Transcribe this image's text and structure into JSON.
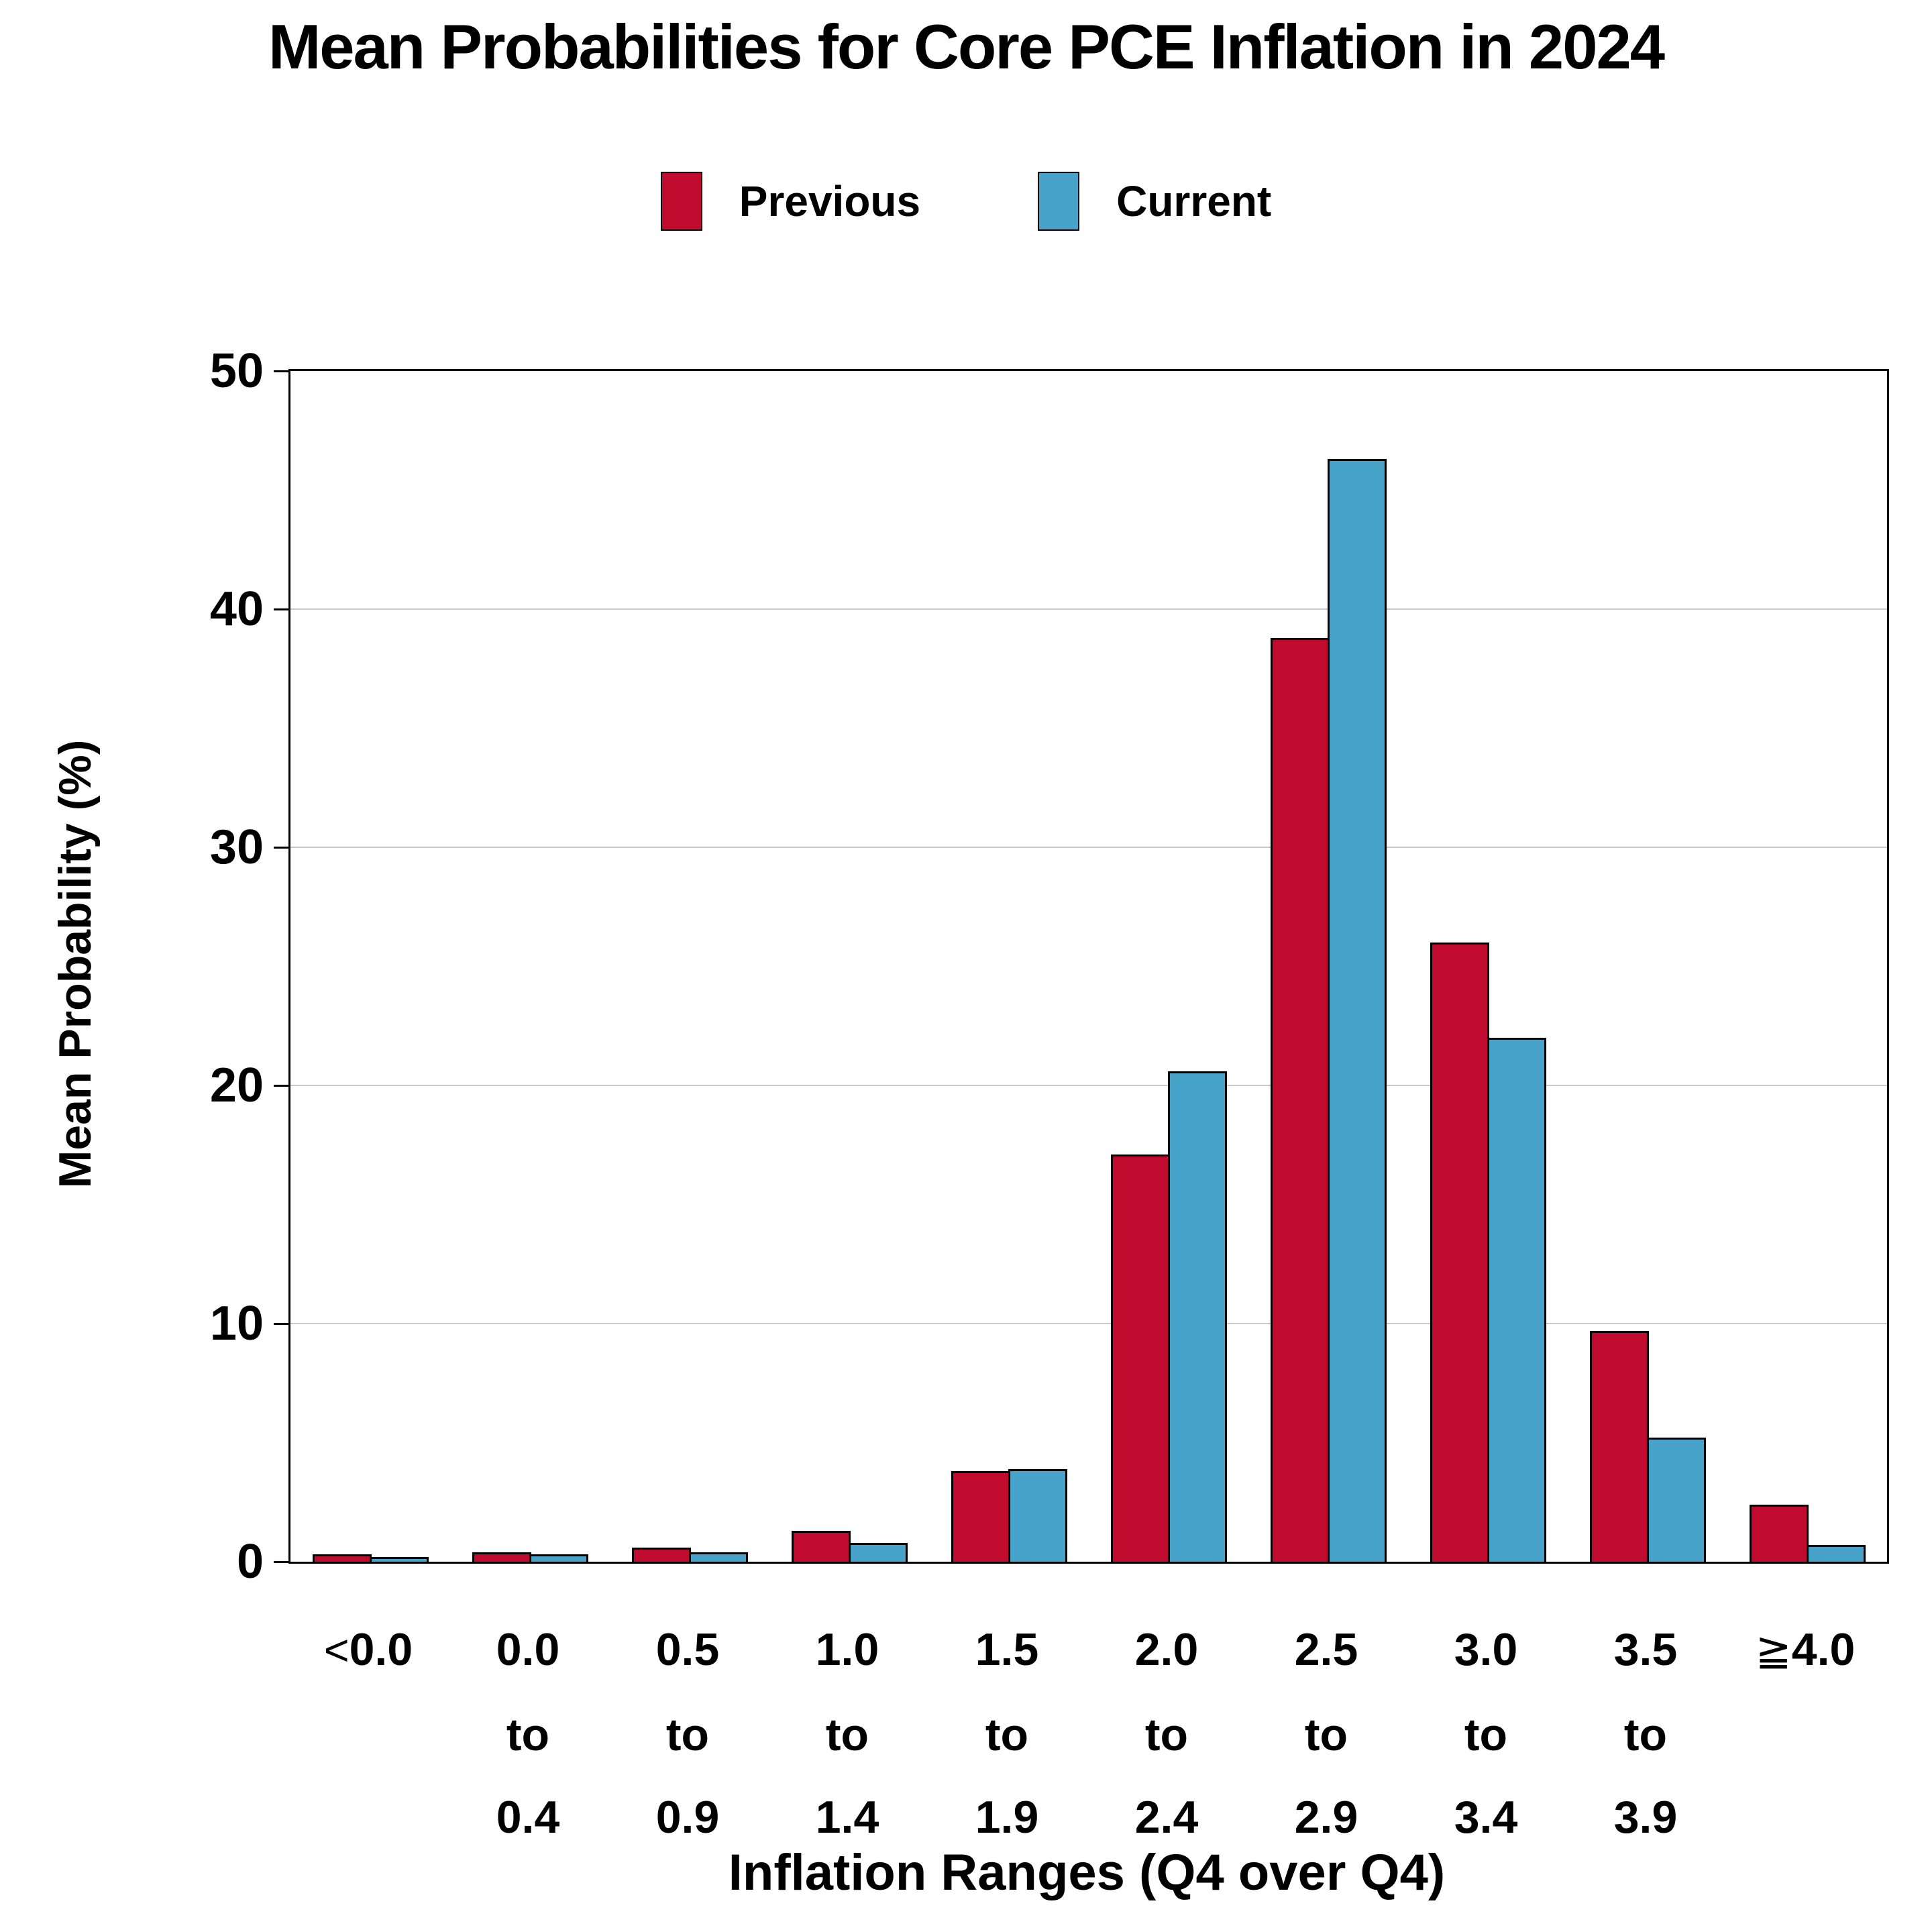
{
  "title": "Mean Probabilities for Core PCE Inflation in 2024",
  "legend": {
    "items": [
      {
        "label": "Previous",
        "color": "#C00A2E"
      },
      {
        "label": "Current",
        "color": "#47A3C9"
      }
    ]
  },
  "y_axis": {
    "title": "Mean Probability (%)",
    "ticks": [
      0,
      10,
      20,
      30,
      40,
      50
    ]
  },
  "x_axis": {
    "title": "Inflation Ranges (Q4 over Q4)",
    "labels": [
      [
        "<0.0"
      ],
      [
        "0.0",
        "to",
        "0.4"
      ],
      [
        "0.5",
        "to",
        "0.9"
      ],
      [
        "1.0",
        "to",
        "1.4"
      ],
      [
        "1.5",
        "to",
        "1.9"
      ],
      [
        "2.0",
        "to",
        "2.4"
      ],
      [
        "2.5",
        "to",
        "2.9"
      ],
      [
        "3.0",
        "to",
        "3.4"
      ],
      [
        "3.5",
        "to",
        "3.9"
      ],
      [
        "≧4.0"
      ]
    ]
  },
  "chart_data": {
    "type": "bar",
    "title": "Mean Probabilities for Core PCE Inflation in 2024",
    "categories": [
      "<0.0",
      "0.0 to 0.4",
      "0.5 to 0.9",
      "1.0 to 1.4",
      "1.5 to 1.9",
      "2.0 to 2.4",
      "2.5 to 2.9",
      "3.0 to 3.4",
      "3.5 to 3.9",
      "≧4.0"
    ],
    "series": [
      {
        "name": "Previous",
        "color": "#C00A2E",
        "values": [
          0.3,
          0.4,
          0.6,
          1.3,
          3.8,
          17.1,
          38.8,
          26.0,
          9.7,
          2.4
        ]
      },
      {
        "name": "Current",
        "color": "#47A3C9",
        "values": [
          0.2,
          0.3,
          0.4,
          0.8,
          3.9,
          20.6,
          46.3,
          22.0,
          5.2,
          0.7
        ]
      }
    ],
    "xlabel": "Inflation Ranges (Q4 over Q4)",
    "ylabel": "Mean Probability (%)",
    "ylim": [
      0,
      50
    ],
    "yticks": [
      0,
      10,
      20,
      30,
      40,
      50
    ],
    "grid": "horizontal light-gray gridlines at 10, 20, 30, 40; black box frame",
    "legend_position": "top-center",
    "bar_outline": "#000000"
  },
  "colors": {
    "previous": "#C00A2E",
    "current": "#47A3C9",
    "gridline": "#C9C9C9",
    "axis": "#000000",
    "background": "#FFFFFF"
  }
}
